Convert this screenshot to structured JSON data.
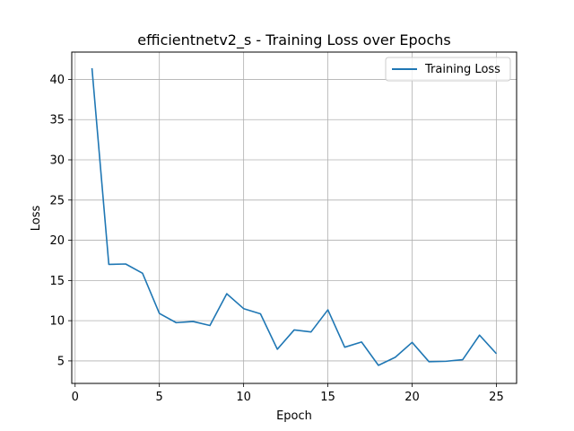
{
  "chart_data": {
    "type": "line",
    "title": "efficientnetv2_s - Training Loss over Epochs",
    "xlabel": "Epoch",
    "ylabel": "Loss",
    "xlim": [
      -0.2,
      26.2
    ],
    "ylim": [
      2.2,
      43.4
    ],
    "xticks": [
      0,
      5,
      10,
      15,
      20,
      25
    ],
    "yticks": [
      5,
      10,
      15,
      20,
      25,
      30,
      35,
      40
    ],
    "grid": true,
    "legend_position": "top-right",
    "series": [
      {
        "name": "Training Loss",
        "color": "#1f77b4",
        "x": [
          1,
          2,
          3,
          4,
          5,
          6,
          7,
          8,
          9,
          10,
          11,
          12,
          13,
          14,
          15,
          16,
          17,
          18,
          19,
          20,
          21,
          22,
          23,
          24,
          25
        ],
        "y": [
          41.4,
          17.0,
          17.05,
          15.9,
          10.9,
          9.75,
          9.9,
          9.4,
          13.35,
          11.5,
          10.85,
          6.45,
          8.85,
          8.6,
          11.35,
          6.7,
          7.35,
          4.45,
          5.45,
          7.3,
          4.9,
          4.95,
          5.15,
          8.2,
          5.9
        ]
      }
    ]
  }
}
